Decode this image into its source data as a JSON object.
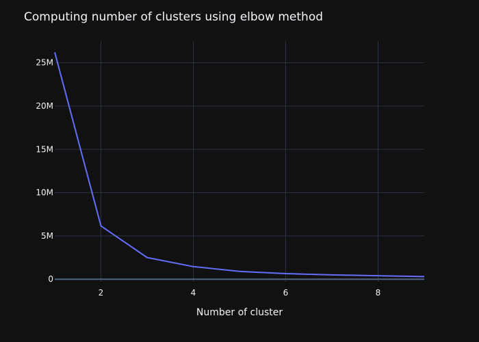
{
  "chart_data": {
    "type": "line",
    "title": "Computing number of clusters using elbow method",
    "xlabel": "Number of cluster",
    "ylabel": "",
    "xlim": [
      1,
      9
    ],
    "ylim": [
      -300000,
      27500000
    ],
    "x_ticks": [
      2,
      4,
      6,
      8
    ],
    "x_tick_labels": [
      "2",
      "4",
      "6",
      "8"
    ],
    "y_ticks": [
      0,
      5000000,
      10000000,
      15000000,
      20000000,
      25000000
    ],
    "y_tick_labels": [
      "0",
      "5M",
      "10M",
      "15M",
      "20M",
      "25M"
    ],
    "grid": true,
    "series": [
      {
        "x": [
          1,
          2,
          3,
          4,
          5,
          6,
          7,
          8,
          9
        ],
        "values": [
          26200000,
          6150000,
          2500000,
          1450000,
          900000,
          650000,
          500000,
          400000,
          300000
        ]
      }
    ],
    "colors": {
      "background": "#111111",
      "grid": "#283442",
      "zeroline": "#506784",
      "line": "#636efa",
      "text": "#f2f5fa"
    }
  }
}
